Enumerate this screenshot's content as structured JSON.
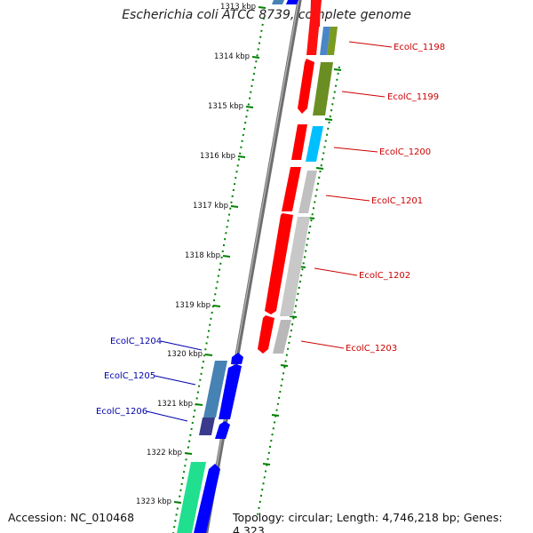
{
  "title": "Escherichia coli ATCC 8739, complete genome",
  "footer": {
    "accession": "Accession: NC_010468",
    "topology": "Topology: circular; Length: 4,746,218 bp; Genes: 4,323"
  },
  "scale_labels": [
    "1313 kbp",
    "1314 kbp",
    "1315 kbp",
    "1316 kbp",
    "1317 kbp",
    "1318 kbp",
    "1319 kbp",
    "1320 kbp",
    "1321 kbp",
    "1322 kbp",
    "1323 kbp"
  ],
  "right_labels": [
    "EcolC_1198",
    "EcolC_1199",
    "EcolC_1200",
    "EcolC_1201",
    "EcolC_1202",
    "EcolC_1203"
  ],
  "left_labels": [
    "EcolC_1204",
    "EcolC_1205",
    "EcolC_1206"
  ],
  "colors": {
    "forward_cds": "#ff0000",
    "reverse_cds": "#0000ff",
    "grey_feature": "#c0c0c0",
    "olive_feature": "#7a9a20",
    "cyan_feature": "#00bfff",
    "steelblue_feature": "#4682b4",
    "teal_feature": "#00e09a",
    "navy_feature": "#3a3a8c",
    "backbone": "#808080",
    "right_label": "#cc0000",
    "left_label": "#0000aa",
    "scale_tick": "#008000"
  }
}
